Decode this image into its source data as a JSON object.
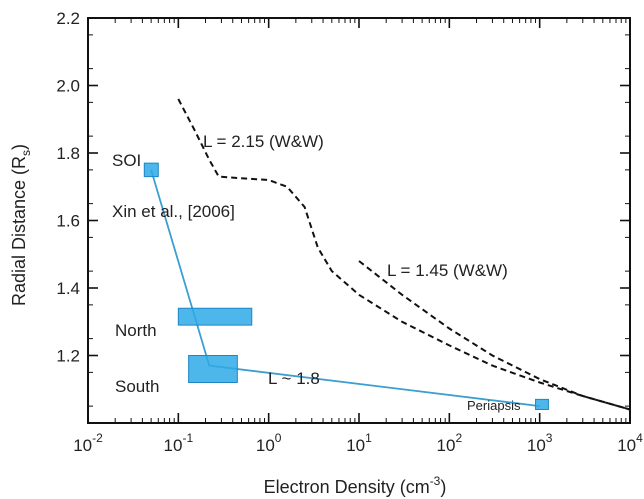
{
  "chart_data": {
    "type": "line",
    "xlabel": "Electron Density (cm",
    "xlabel_sup": "-3",
    "xlabel_close": ")",
    "ylabel": "Radial Distance (R",
    "ylabel_sub": "s",
    "ylabel_close": ")",
    "x_scale": "log",
    "xlim": [
      0.01,
      10000
    ],
    "ylim": [
      1.0,
      2.2
    ],
    "grid": false,
    "x_ticks": [
      {
        "base": "10",
        "exp": "-2",
        "value": 0.01
      },
      {
        "base": "10",
        "exp": "-1",
        "value": 0.1
      },
      {
        "base": "10",
        "exp": "0",
        "value": 1
      },
      {
        "base": "10",
        "exp": "1",
        "value": 10
      },
      {
        "base": "10",
        "exp": "2",
        "value": 100
      },
      {
        "base": "10",
        "exp": "3",
        "value": 1000
      },
      {
        "base": "10",
        "exp": "4",
        "value": 10000
      }
    ],
    "y_ticks": [
      {
        "label": "1.2",
        "value": 1.2
      },
      {
        "label": "1.4",
        "value": 1.4
      },
      {
        "label": "1.6",
        "value": 1.6
      },
      {
        "label": "1.8",
        "value": 1.8
      },
      {
        "label": "2.0",
        "value": 2.0
      },
      {
        "label": "2.2",
        "value": 2.2
      }
    ],
    "series": [
      {
        "name": "L = 2.15  (W&W)",
        "style": "dashed",
        "color": "#111111",
        "points": [
          [
            0.1,
            1.96
          ],
          [
            0.15,
            1.87
          ],
          [
            0.22,
            1.78
          ],
          [
            0.28,
            1.73
          ],
          [
            0.5,
            1.725
          ],
          [
            1.0,
            1.72
          ],
          [
            1.6,
            1.7
          ],
          [
            2.5,
            1.64
          ],
          [
            3.5,
            1.52
          ],
          [
            5,
            1.45
          ],
          [
            10,
            1.38
          ],
          [
            30,
            1.3
          ],
          [
            100,
            1.23
          ],
          [
            300,
            1.17
          ],
          [
            1000,
            1.12
          ],
          [
            3000,
            1.08
          ],
          [
            10000,
            1.04
          ]
        ]
      },
      {
        "name": "L = 1.45 (W&W)",
        "style": "dashed",
        "color": "#111111",
        "points": [
          [
            10,
            1.48
          ],
          [
            30,
            1.38
          ],
          [
            100,
            1.28
          ],
          [
            300,
            1.2
          ],
          [
            1000,
            1.13
          ],
          [
            3000,
            1.08
          ],
          [
            10000,
            1.04
          ]
        ]
      },
      {
        "name": "L ~ 1.8",
        "style": "solid",
        "color": "#3a9fd0",
        "points": [
          [
            0.05,
            1.75
          ],
          [
            0.22,
            1.17
          ],
          [
            1000,
            1.05
          ]
        ]
      }
    ],
    "boxes": [
      {
        "name": "SOI",
        "x": [
          0.042,
          0.06
        ],
        "y": [
          1.73,
          1.77
        ],
        "color": "#2ea9e6"
      },
      {
        "name": "North",
        "x": [
          0.1,
          0.65
        ],
        "y": [
          1.29,
          1.34
        ],
        "color": "#2ea9e6"
      },
      {
        "name": "South",
        "x": [
          0.13,
          0.45
        ],
        "y": [
          1.12,
          1.2
        ],
        "color": "#2ea9e6"
      },
      {
        "name": "Periapsis",
        "x": [
          900,
          1250
        ],
        "y": [
          1.04,
          1.07
        ],
        "color": "#2ea9e6"
      }
    ],
    "annotations": {
      "l215": "L = 2.15  (W&W)",
      "l145": "L = 1.45 (W&W)",
      "l18": "L ~ 1.8",
      "soi": "SOI",
      "xin": "Xin et al., [2006]",
      "north": "North",
      "south": "South",
      "periapsis": "Periapsis"
    }
  }
}
